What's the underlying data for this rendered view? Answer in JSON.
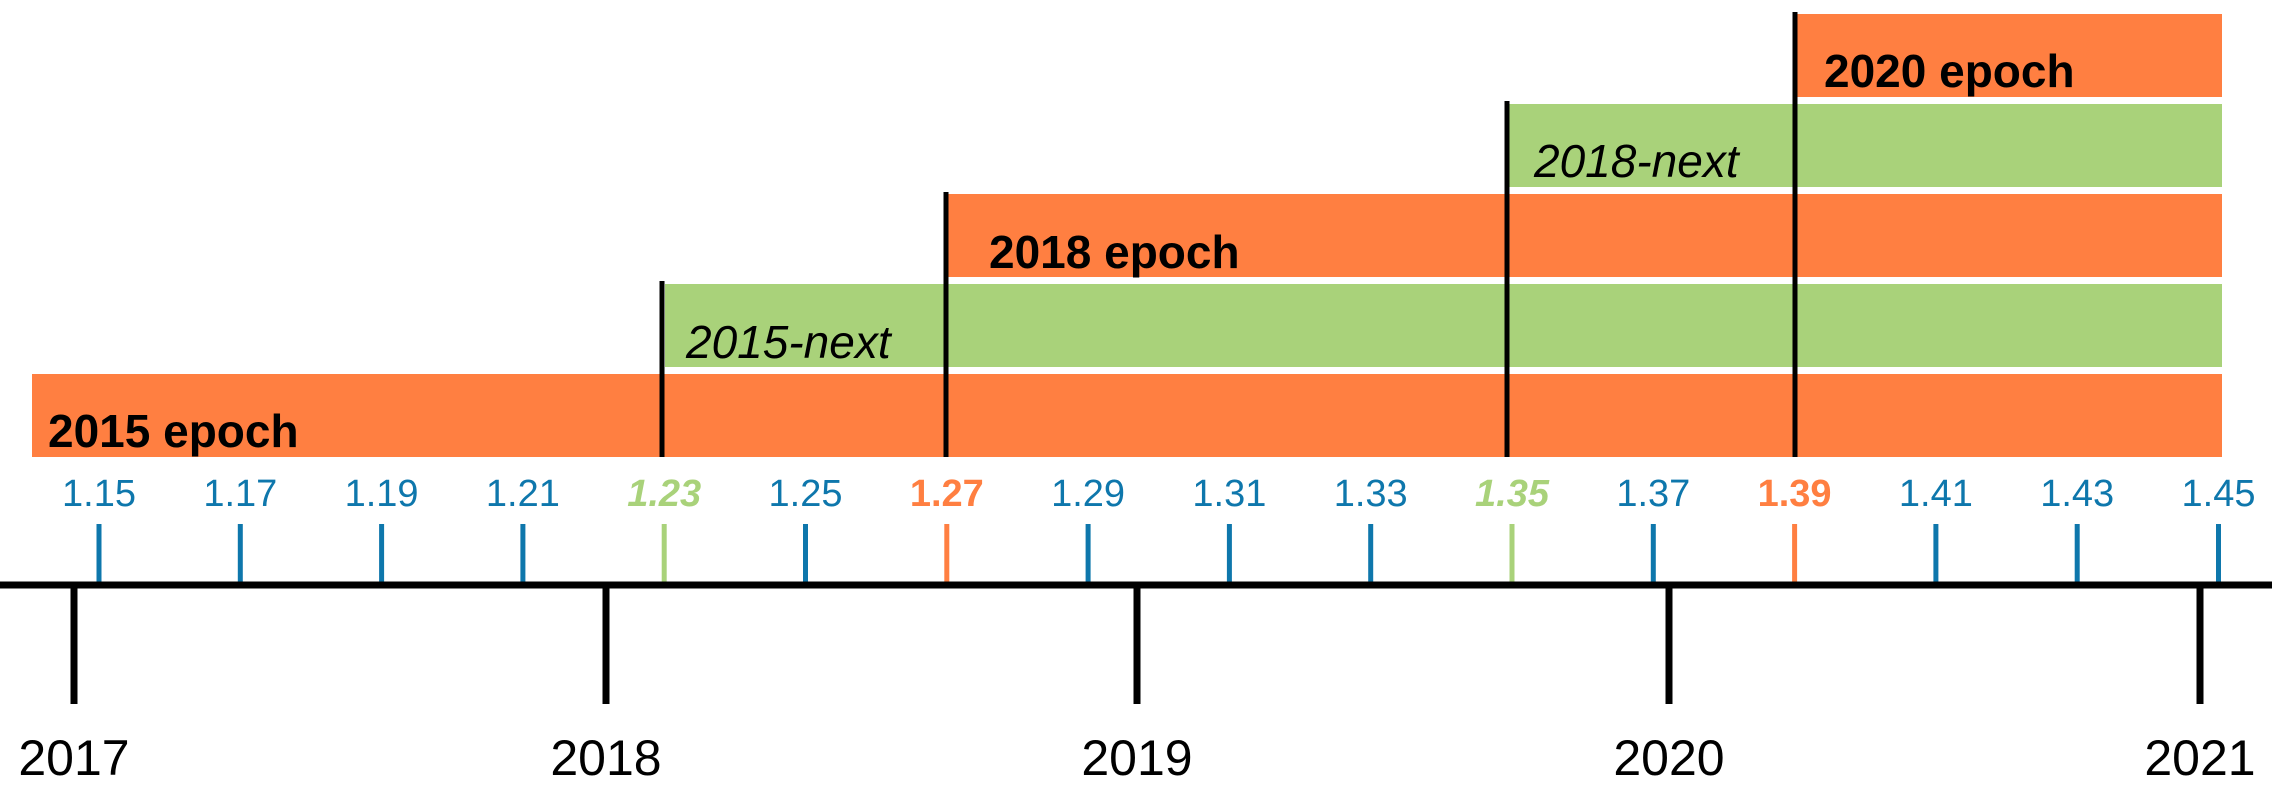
{
  "colors": {
    "epoch": "#FF7F41",
    "next": "#A9D27A",
    "release": "#0E77AC",
    "axis": "#000000",
    "separator": "#FFFFFF"
  },
  "bands": [
    {
      "id": "2015-epoch",
      "label": "2015 epoch",
      "kind": "epoch",
      "italic": false
    },
    {
      "id": "2015-next",
      "label": "2015-next",
      "kind": "next",
      "italic": true
    },
    {
      "id": "2018-epoch",
      "label": "2018 epoch",
      "kind": "epoch",
      "italic": false
    },
    {
      "id": "2018-next",
      "label": "2018-next",
      "kind": "next",
      "italic": true
    },
    {
      "id": "2020-epoch",
      "label": "2020 epoch",
      "kind": "epoch",
      "italic": false
    }
  ],
  "releases": [
    {
      "version": "1.15",
      "kind": "stable"
    },
    {
      "version": "1.17",
      "kind": "stable"
    },
    {
      "version": "1.19",
      "kind": "stable"
    },
    {
      "version": "1.21",
      "kind": "stable"
    },
    {
      "version": "1.23",
      "kind": "nightly"
    },
    {
      "version": "1.25",
      "kind": "stable"
    },
    {
      "version": "1.27",
      "kind": "epoch"
    },
    {
      "version": "1.29",
      "kind": "stable"
    },
    {
      "version": "1.31",
      "kind": "stable"
    },
    {
      "version": "1.33",
      "kind": "stable"
    },
    {
      "version": "1.35",
      "kind": "nightly"
    },
    {
      "version": "1.37",
      "kind": "stable"
    },
    {
      "version": "1.39",
      "kind": "epoch"
    },
    {
      "version": "1.41",
      "kind": "stable"
    },
    {
      "version": "1.43",
      "kind": "stable"
    },
    {
      "version": "1.45",
      "kind": "stable"
    }
  ],
  "years": [
    "2017",
    "2018",
    "2019",
    "2020",
    "2021"
  ]
}
